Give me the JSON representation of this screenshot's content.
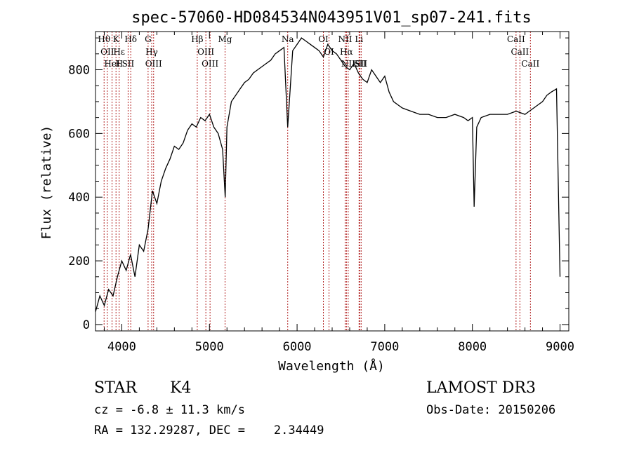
{
  "chart_data": {
    "type": "line",
    "title": "spec-57060-HD084534N043951V01_sp07-241.fits",
    "xlabel": "Wavelength (Å)",
    "ylabel": "Flux (relative)",
    "xlim": [
      3700,
      9100
    ],
    "ylim": [
      -20,
      920
    ],
    "x_ticks": [
      4000,
      5000,
      6000,
      7000,
      8000,
      9000
    ],
    "y_ticks": [
      0,
      200,
      400,
      600,
      800
    ],
    "grid": false,
    "series": [
      {
        "values_note": "",
        "x": [
          3700,
          3750,
          3800,
          3850,
          3900,
          3950,
          4000,
          4050,
          4100,
          4150,
          4200,
          4250,
          4300,
          4350,
          4400,
          4450,
          4500,
          4550,
          4600,
          4650,
          4700,
          4750,
          4800,
          4850,
          4900,
          4950,
          5000,
          5050,
          5100,
          5150,
          5180,
          5200,
          5250,
          5300,
          5350,
          5400,
          5450,
          5500,
          5550,
          5600,
          5650,
          5700,
          5750,
          5800,
          5850,
          5893,
          5950,
          6000,
          6050,
          6100,
          6150,
          6200,
          6250,
          6300,
          6350,
          6400,
          6450,
          6500,
          6550,
          6600,
          6650,
          6700,
          6750,
          6800,
          6850,
          6900,
          6950,
          7000,
          7050,
          7100,
          7150,
          7200,
          7300,
          7400,
          7500,
          7600,
          7700,
          7800,
          7900,
          7950,
          8000,
          8020,
          8050,
          8100,
          8200,
          8300,
          8400,
          8500,
          8600,
          8700,
          8800,
          8850,
          8900,
          8960,
          9000
        ],
        "y": [
          40,
          90,
          60,
          110,
          90,
          150,
          200,
          170,
          220,
          150,
          250,
          230,
          300,
          420,
          380,
          450,
          490,
          520,
          560,
          550,
          570,
          610,
          630,
          620,
          650,
          640,
          660,
          620,
          600,
          550,
          400,
          620,
          700,
          720,
          740,
          760,
          770,
          790,
          800,
          810,
          820,
          830,
          850,
          860,
          870,
          620,
          860,
          880,
          900,
          890,
          880,
          870,
          860,
          840,
          880,
          860,
          850,
          830,
          810,
          800,
          820,
          790,
          770,
          760,
          800,
          780,
          760,
          780,
          730,
          700,
          690,
          680,
          670,
          660,
          660,
          650,
          650,
          660,
          650,
          640,
          650,
          370,
          620,
          650,
          660,
          660,
          660,
          670,
          660,
          680,
          700,
          720,
          730,
          740,
          150
        ]
      }
    ],
    "lines": [
      {
        "x": 3798,
        "labels": [
          "Hθ"
        ]
      },
      {
        "x": 3835,
        "labels": [
          "OII"
        ]
      },
      {
        "x": 3889,
        "labels": [
          "HeI"
        ]
      },
      {
        "x": 3934,
        "labels": [
          "K"
        ]
      },
      {
        "x": 3970,
        "labels": [
          "Hε",
          "H"
        ]
      },
      {
        "x": 4072,
        "labels": [
          "SII"
        ]
      },
      {
        "x": 4102,
        "labels": [
          "Hδ"
        ]
      },
      {
        "x": 4300,
        "labels": [
          "G"
        ]
      },
      {
        "x": 4341,
        "labels": [
          "Hγ"
        ]
      },
      {
        "x": 4363,
        "labels": [
          "OIII"
        ]
      },
      {
        "x": 4861,
        "labels": [
          "Hβ"
        ]
      },
      {
        "x": 4959,
        "labels": [
          "OIII"
        ]
      },
      {
        "x": 5007,
        "labels": [
          "OIII"
        ]
      },
      {
        "x": 5178,
        "labels": [
          "Mg"
        ]
      },
      {
        "x": 5893,
        "labels": [
          "Na"
        ]
      },
      {
        "x": 6300,
        "labels": [
          "OI"
        ]
      },
      {
        "x": 6364,
        "labels": [
          "OI"
        ]
      },
      {
        "x": 6548,
        "labels": [
          "NII"
        ]
      },
      {
        "x": 6563,
        "labels": [
          "Hα"
        ]
      },
      {
        "x": 6583,
        "labels": [
          "NII"
        ]
      },
      {
        "x": 6707,
        "labels": [
          "Li"
        ]
      },
      {
        "x": 6716,
        "labels": [
          "SII"
        ]
      },
      {
        "x": 6731,
        "labels": [
          "SII"
        ]
      },
      {
        "x": 8498,
        "labels": [
          "CaII"
        ]
      },
      {
        "x": 8542,
        "labels": [
          "CaII"
        ]
      },
      {
        "x": 8662,
        "labels": [
          "CaII"
        ]
      }
    ]
  },
  "info": {
    "object_class": "STAR",
    "subclass": "K4",
    "survey": "LAMOST DR3",
    "cz": "cz = -6.8 ± 11.3 km/s",
    "obs_date": "Obs-Date: 20150206",
    "radec": "RA = 132.29287, DEC =    2.34449"
  }
}
